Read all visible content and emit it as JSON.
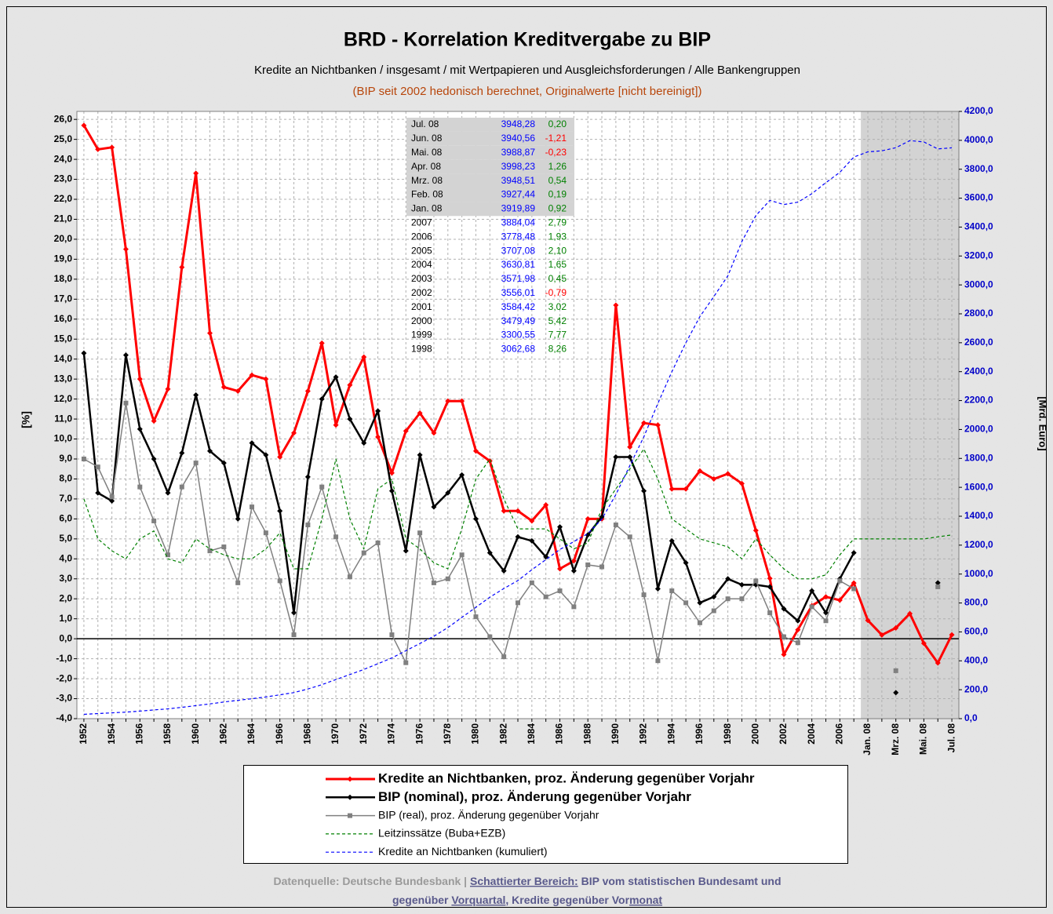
{
  "chart_data": {
    "type": "line",
    "title": "BRD - Korrelation Kreditvergabe zu BIP",
    "subtitle": "Kredite an Nichtbanken / insgesamt / mit Wertpapieren und Ausgleichsforderungen / Alle Bankengruppen",
    "note": "(BIP seit 2002 hedonisch berechnet, Originalwerte [nicht bereinigt])",
    "y_label": "[%]",
    "y2_label": "[Mrd. Euro]",
    "grid": true,
    "legend": "bottom",
    "categories": [
      "1952",
      null,
      "1954",
      null,
      "1956",
      null,
      "1958",
      null,
      "1960",
      null,
      "1962",
      null,
      "1964",
      null,
      "1966",
      null,
      "1968",
      null,
      "1970",
      null,
      "1972",
      null,
      "1974",
      null,
      "1976",
      null,
      "1978",
      null,
      "1980",
      null,
      "1982",
      null,
      "1984",
      null,
      "1986",
      null,
      "1988",
      null,
      "1990",
      null,
      "1992",
      null,
      "1994",
      null,
      "1996",
      null,
      "1998",
      null,
      "2000",
      null,
      "2002",
      null,
      "2004",
      null,
      "2006",
      null,
      "Jan. 08",
      null,
      "Mrz. 08",
      null,
      "Mai. 08",
      null,
      "Jul. 08"
    ],
    "ylim": [
      -4,
      26.4
    ],
    "yticks": [
      {
        "value": -4,
        "label": "-4,0"
      },
      {
        "value": -3,
        "label": "-3,0"
      },
      {
        "value": -2,
        "label": "-2,0"
      },
      {
        "value": -1,
        "label": "-1,0"
      },
      {
        "value": 0,
        "label": "0,0"
      },
      {
        "value": 1,
        "label": "1,0"
      },
      {
        "value": 2,
        "label": "2,0"
      },
      {
        "value": 3,
        "label": "3,0"
      },
      {
        "value": 4,
        "label": "4,0"
      },
      {
        "value": 5,
        "label": "5,0"
      },
      {
        "value": 6,
        "label": "6,0"
      },
      {
        "value": 7,
        "label": "7,0"
      },
      {
        "value": 8,
        "label": "8,0"
      },
      {
        "value": 9,
        "label": "9,0"
      },
      {
        "value": 10,
        "label": "10,0"
      },
      {
        "value": 11,
        "label": "11,0"
      },
      {
        "value": 12,
        "label": "12,0"
      },
      {
        "value": 13,
        "label": "13,0"
      },
      {
        "value": 14,
        "label": "14,0"
      },
      {
        "value": 15,
        "label": "15,0"
      },
      {
        "value": 16,
        "label": "16,0"
      },
      {
        "value": 17,
        "label": "17,0"
      },
      {
        "value": 18,
        "label": "18,0"
      },
      {
        "value": 19,
        "label": "19,0"
      },
      {
        "value": 20,
        "label": "20,0"
      },
      {
        "value": 21,
        "label": "21,0"
      },
      {
        "value": 22,
        "label": "22,0"
      },
      {
        "value": 23,
        "label": "23,0"
      },
      {
        "value": 24,
        "label": "24,0"
      },
      {
        "value": 25,
        "label": "25,0"
      },
      {
        "value": 26,
        "label": "26,0"
      }
    ],
    "y2lim": [
      0,
      4200
    ],
    "y2ticks": [
      {
        "value": 0,
        "label": "0,0"
      },
      {
        "value": 200,
        "label": "200,0"
      },
      {
        "value": 400,
        "label": "400,0"
      },
      {
        "value": 600,
        "label": "600,0"
      },
      {
        "value": 800,
        "label": "800,0"
      },
      {
        "value": 1000,
        "label": "1000,0"
      },
      {
        "value": 1200,
        "label": "1200,0"
      },
      {
        "value": 1400,
        "label": "1400,0"
      },
      {
        "value": 1600,
        "label": "1600,0"
      },
      {
        "value": 1800,
        "label": "1800,0"
      },
      {
        "value": 2000,
        "label": "2000,0"
      },
      {
        "value": 2200,
        "label": "2200,0"
      },
      {
        "value": 2400,
        "label": "2400,0"
      },
      {
        "value": 2600,
        "label": "2600,0"
      },
      {
        "value": 2800,
        "label": "2800,0"
      },
      {
        "value": 3000,
        "label": "3000,0"
      },
      {
        "value": 3200,
        "label": "3200,0"
      },
      {
        "value": 3400,
        "label": "3400,0"
      },
      {
        "value": 3600,
        "label": "3600,0"
      },
      {
        "value": 3800,
        "label": "3800,0"
      },
      {
        "value": 4000,
        "label": "4000,0"
      },
      {
        "value": 4200,
        "label": "4200,0"
      }
    ],
    "series": [
      {
        "name": "Kredite an Nichtbanken, proz. Änderung gegenüber Vorjahr",
        "color": "#ff0000",
        "line_style": "solid",
        "marker": "diamond",
        "values": [
          25.7,
          24.5,
          24.6,
          19.5,
          13.0,
          10.9,
          12.5,
          18.6,
          23.3,
          15.3,
          12.6,
          12.4,
          13.2,
          13.0,
          9.1,
          10.3,
          12.4,
          14.8,
          10.7,
          12.7,
          14.1,
          10.1,
          8.3,
          10.4,
          11.3,
          10.3,
          11.9,
          11.9,
          9.4,
          8.9,
          6.4,
          6.4,
          5.9,
          6.7,
          3.5,
          3.9,
          6.0,
          6.0,
          16.7,
          9.6,
          10.8,
          10.7,
          7.5,
          7.5,
          8.4,
          8.0,
          8.26,
          7.77,
          5.42,
          3.02,
          -0.79,
          0.45,
          1.65,
          2.1,
          1.93,
          2.79,
          0.92,
          0.19,
          0.54,
          1.26,
          -0.23,
          -1.21,
          0.2
        ]
      },
      {
        "name": "BIP (nominal), proz. Änderung gegenüber Vorjahr",
        "color": "#000000",
        "line_style": "solid",
        "marker": "diamond",
        "values": [
          14.3,
          7.3,
          6.9,
          14.2,
          10.5,
          9.0,
          7.3,
          9.3,
          12.2,
          9.4,
          8.8,
          6.0,
          9.8,
          9.2,
          6.4,
          1.3,
          8.1,
          12.0,
          13.1,
          11.0,
          9.8,
          11.4,
          7.4,
          4.4,
          9.2,
          6.6,
          7.3,
          8.2,
          6.0,
          4.3,
          3.4,
          5.1,
          4.9,
          4.1,
          5.6,
          3.4,
          5.2,
          6.1,
          9.1,
          9.1,
          7.4,
          2.5,
          4.9,
          3.8,
          1.8,
          2.1,
          3.0,
          2.7,
          2.7,
          2.6,
          1.5,
          0.9,
          2.4,
          1.3,
          3.0,
          4.3,
          null,
          null,
          -2.7,
          null,
          null,
          2.8,
          null
        ]
      },
      {
        "name": "BIP (real), proz. Änderung gegenüber Vorjahr",
        "color": "#808080",
        "line_style": "solid",
        "marker": "square",
        "values": [
          9.0,
          8.6,
          7.1,
          11.8,
          7.6,
          5.9,
          4.2,
          7.6,
          8.8,
          4.4,
          4.6,
          2.8,
          6.6,
          5.3,
          2.9,
          0.2,
          5.7,
          7.6,
          5.1,
          3.1,
          4.3,
          4.8,
          0.2,
          -1.2,
          5.3,
          2.8,
          3.0,
          4.2,
          1.1,
          0.1,
          -0.9,
          1.8,
          2.8,
          2.1,
          2.4,
          1.6,
          3.7,
          3.6,
          5.7,
          5.1,
          2.2,
          -1.1,
          2.4,
          1.8,
          0.8,
          1.4,
          2.0,
          2.0,
          2.9,
          1.3,
          0.1,
          -0.2,
          1.6,
          0.9,
          2.9,
          2.5,
          null,
          null,
          -1.6,
          null,
          null,
          2.6,
          null
        ]
      },
      {
        "name": "Leitzinssätze (Buba+EZB)",
        "color": "#008000",
        "line_style": "dashed",
        "marker": "none",
        "values": [
          7.0,
          5.0,
          4.4,
          4.0,
          5.0,
          5.4,
          4.0,
          3.8,
          5.0,
          4.5,
          4.2,
          4.0,
          4.0,
          4.5,
          5.3,
          3.5,
          3.5,
          6.0,
          9.0,
          6.0,
          4.5,
          7.5,
          8.0,
          5.0,
          4.5,
          3.8,
          3.5,
          5.5,
          8.0,
          9.0,
          7.0,
          5.5,
          5.5,
          5.5,
          5.0,
          4.5,
          4.8,
          6.5,
          7.5,
          8.5,
          9.5,
          8.0,
          6.0,
          5.5,
          5.0,
          4.8,
          4.6,
          4.0,
          5.0,
          4.2,
          3.5,
          3.0,
          3.0,
          3.2,
          4.2,
          5.0,
          5.0,
          5.0,
          5.0,
          5.0,
          5.0,
          5.1,
          5.2
        ]
      },
      {
        "name": "Kredite an Nichtbanken (kumuliert)",
        "color": "#0000ff",
        "line_style": "dashed",
        "marker": "none",
        "axis": "y2",
        "values": [
          30,
          35,
          40,
          45,
          52,
          60,
          68,
          78,
          90,
          102,
          115,
          127,
          138,
          150,
          165,
          180,
          205,
          235,
          270,
          305,
          340,
          380,
          420,
          470,
          520,
          570,
          630,
          700,
          770,
          840,
          900,
          955,
          1030,
          1100,
          1170,
          1225,
          1280,
          1380,
          1550,
          1750,
          1950,
          2180,
          2400,
          2600,
          2780,
          2920,
          3062.68,
          3300.55,
          3479.49,
          3584.42,
          3556.01,
          3571.98,
          3630.81,
          3707.08,
          3778.48,
          3884.04,
          3919.89,
          3927.44,
          3948.51,
          3998.23,
          3988.87,
          3940.56,
          3948.28
        ]
      }
    ],
    "table": [
      [
        "Jul. 08",
        "3948,28",
        "0,20"
      ],
      [
        "Jun. 08",
        "3940,56",
        "-1,21"
      ],
      [
        "Mai. 08",
        "3988,87",
        "-0,23"
      ],
      [
        "Apr. 08",
        "3998,23",
        "1,26"
      ],
      [
        "Mrz. 08",
        "3948,51",
        "0,54"
      ],
      [
        "Feb. 08",
        "3927,44",
        "0,19"
      ],
      [
        "Jan. 08",
        "3919,89",
        "0,92"
      ],
      [
        "2007",
        "3884,04",
        "2,79"
      ],
      [
        "2006",
        "3778,48",
        "1,93"
      ],
      [
        "2005",
        "3707,08",
        "2,10"
      ],
      [
        "2004",
        "3630,81",
        "1,65"
      ],
      [
        "2003",
        "3571,98",
        "0,45"
      ],
      [
        "2002",
        "3556,01",
        "-0,79"
      ],
      [
        "2001",
        "3584,42",
        "3,02"
      ],
      [
        "2000",
        "3479,49",
        "5,42"
      ],
      [
        "1999",
        "3300,55",
        "7,77"
      ],
      [
        "1998",
        "3062,68",
        "8,26"
      ]
    ],
    "footer": [
      [
        "Datenquelle: Deutsche Bundesbank | ",
        "Schattierter Bereich:",
        " BIP vom statistischen Bundesamt und"
      ],
      [
        "gegenüber ",
        "Vorquartal",
        ", Kredite gegenüber Vor",
        "monat"
      ]
    ]
  }
}
